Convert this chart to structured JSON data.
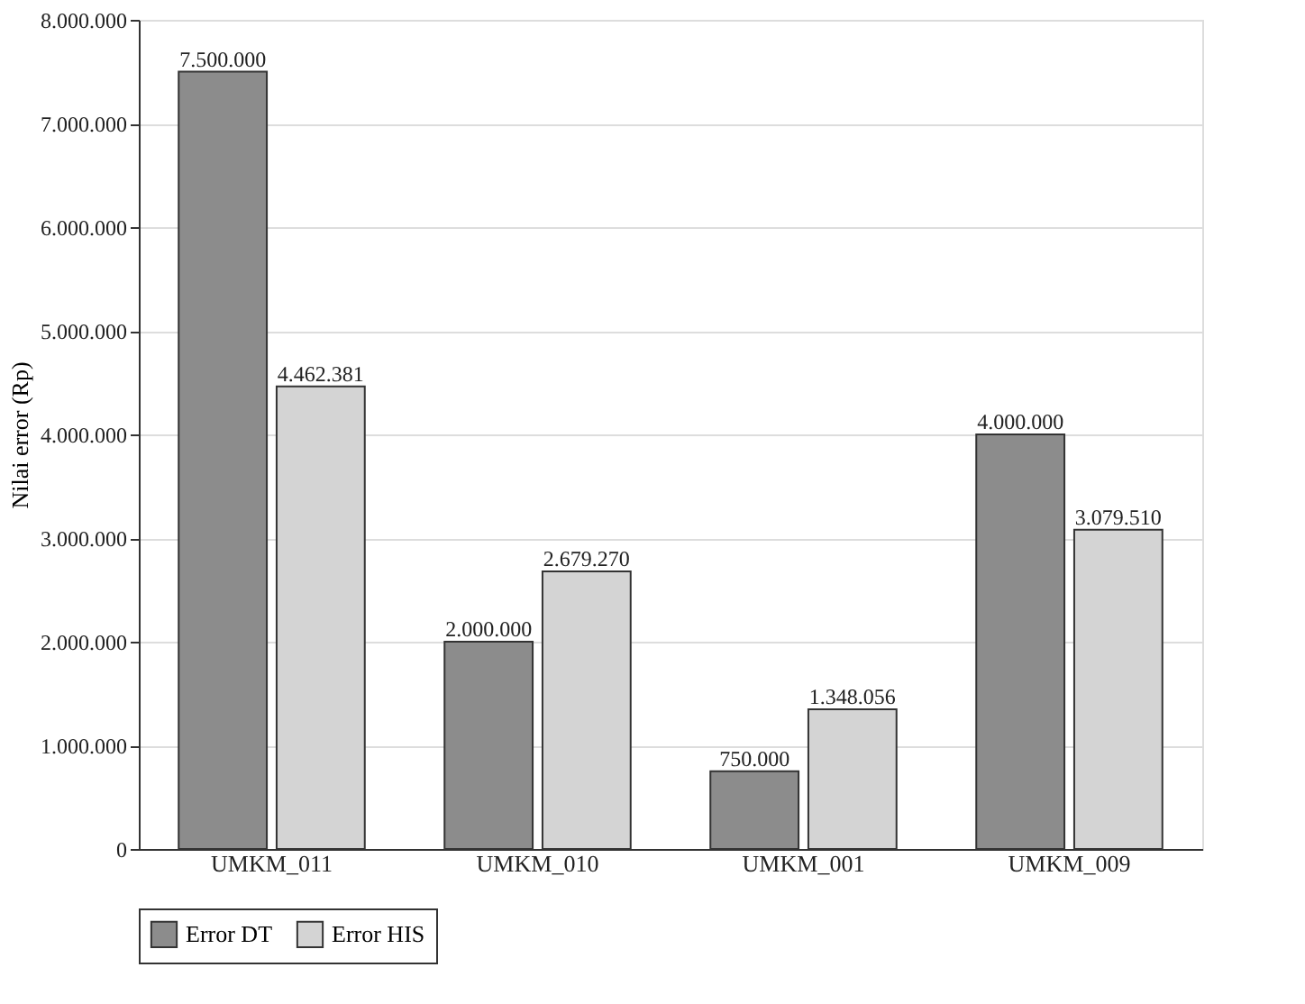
{
  "chart_data": {
    "type": "bar",
    "ylabel": "Nilai error (Rp)",
    "categories": [
      "UMKM_011",
      "UMKM_010",
      "UMKM_001",
      "UMKM_009"
    ],
    "series": [
      {
        "name": "Error DT",
        "color": "#8c8c8c",
        "values": [
          7500000,
          2000000,
          750000,
          4000000
        ],
        "value_labels": [
          "7.500.000",
          "2.000.000",
          "750.000",
          "4.000.000"
        ]
      },
      {
        "name": "Error HIS",
        "color": "#d4d4d4",
        "values": [
          4462381,
          2679270,
          1348056,
          3079510
        ],
        "value_labels": [
          "4.462.381",
          "2.679.270",
          "1.348.056",
          "3.079.510"
        ]
      }
    ],
    "ylim": [
      0,
      8000000
    ],
    "yticks": [
      0,
      {
        "value": 1000000,
        "label": "1.000.000"
      },
      {
        "value": 2000000,
        "label": "2.000.000"
      },
      {
        "value": 3000000,
        "label": "3.000.000"
      },
      {
        "value": 4000000,
        "label": "4.000.000"
      },
      {
        "value": 5000000,
        "label": "5.000.000"
      },
      {
        "value": 6000000,
        "label": "6.000.000"
      },
      {
        "value": 7000000,
        "label": "7.000.000"
      },
      {
        "value": 8000000,
        "label": "8.000.000"
      }
    ],
    "grid": "y",
    "legend": "bottom"
  }
}
